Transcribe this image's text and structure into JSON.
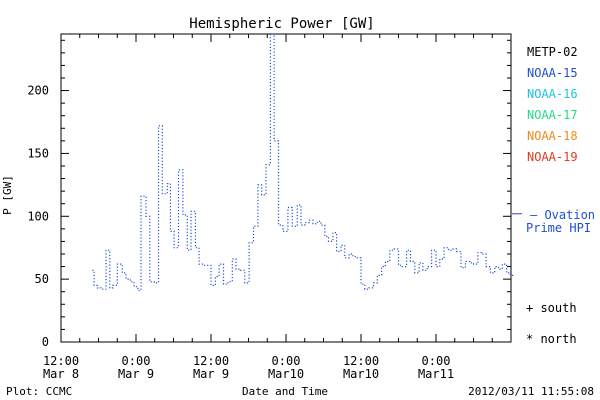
{
  "chart_data": {
    "type": "line",
    "title": "Hemispheric Power [GW]",
    "xlabel": "Date and Time",
    "ylabel": "P [GW]",
    "ylim": [
      0,
      245
    ],
    "xlim_hours": [
      0,
      72
    ],
    "y_ticks": [
      0,
      50,
      100,
      150,
      200
    ],
    "x_ticks": [
      {
        "h": 0,
        "line1": "12:00",
        "line2": "Mar 8"
      },
      {
        "h": 12,
        "line1": "0:00",
        "line2": "Mar 9"
      },
      {
        "h": 24,
        "line1": "12:00",
        "line2": "Mar 9"
      },
      {
        "h": 36,
        "line1": "0:00",
        "line2": "Mar10"
      },
      {
        "h": 48,
        "line1": "12:00",
        "line2": "Mar10"
      },
      {
        "h": 60,
        "line1": "0:00",
        "line2": "Mar11"
      }
    ],
    "x_time_origin": "2012/03/08 12:00",
    "grid": false,
    "legend": [
      {
        "name": "METP-02",
        "color": "#000000"
      },
      {
        "name": "NOAA-15",
        "color": "#1f4fd0"
      },
      {
        "name": "NOAA-16",
        "color": "#22c4dc"
      },
      {
        "name": "NOAA-17",
        "color": "#22dc88"
      },
      {
        "name": "NOAA-18",
        "color": "#f08a1e"
      },
      {
        "name": "NOAA-19",
        "color": "#e03a1e"
      }
    ],
    "legend_position": "right",
    "ovation": {
      "label_line1": "– Ovation",
      "label_line2": "Prime HPI",
      "value": 102,
      "color": "#1f4fd0"
    },
    "symbol_legend": [
      "+ south",
      "* north"
    ],
    "series": [
      {
        "name": "Ovation Prime HPI",
        "color": "#1f4fd0",
        "style": "dotted-step",
        "t": [
          5.0,
          5.3,
          5.8,
          6.4,
          7.2,
          7.8,
          8.3,
          9.0,
          9.8,
          10.4,
          11.1,
          11.7,
          12.3,
          12.8,
          13.6,
          14.2,
          14.9,
          15.6,
          16.2,
          17.0,
          17.5,
          18.1,
          18.8,
          19.5,
          20.2,
          20.8,
          21.5,
          22.1,
          22.8,
          23.4,
          24.0,
          24.7,
          25.3,
          26.0,
          26.7,
          27.4,
          28.0,
          28.7,
          29.4,
          30.1,
          30.8,
          31.5,
          32.1,
          32.8,
          33.5,
          34.1,
          34.8,
          35.5,
          36.3,
          37.0,
          37.8,
          38.4,
          39.0,
          39.7,
          40.3,
          41.0,
          41.6,
          42.2,
          42.8,
          43.5,
          44.1,
          44.8,
          45.4,
          46.1,
          46.7,
          47.4,
          48.0,
          48.6,
          49.3,
          50.0,
          50.6,
          51.3,
          51.9,
          52.6,
          53.3,
          54.0,
          54.6,
          55.3,
          55.9,
          56.6,
          57.3,
          57.9,
          58.6,
          59.3,
          60.0,
          60.6,
          61.3,
          62.0,
          62.7,
          63.3,
          64.0,
          64.7,
          65.4,
          66.0,
          66.7,
          67.3,
          68.0,
          68.7,
          69.4,
          70.0,
          70.6,
          71.3,
          71.9
        ],
        "values": [
          57,
          45,
          43,
          42,
          73,
          43,
          45,
          62,
          55,
          50,
          48,
          44,
          41,
          116,
          100,
          48,
          47,
          172,
          118,
          126,
          88,
          75,
          137,
          101,
          73,
          104,
          75,
          62,
          61,
          61,
          45,
          52,
          62,
          46,
          48,
          66,
          58,
          57,
          47,
          79,
          92,
          125,
          117,
          141,
          245,
          160,
          93,
          88,
          107,
          92,
          109,
          93,
          95,
          97,
          94,
          96,
          93,
          84,
          80,
          87,
          72,
          77,
          67,
          70,
          68,
          67,
          46,
          42,
          43,
          47,
          53,
          60,
          64,
          73,
          74,
          61,
          60,
          73,
          64,
          55,
          63,
          57,
          60,
          73,
          60,
          66,
          75,
          73,
          74,
          72,
          59,
          64,
          63,
          62,
          71,
          70,
          60,
          55,
          60,
          58,
          62,
          55,
          53
        ]
      }
    ]
  },
  "footer": {
    "left": "Plot: CCMC",
    "right": "2012/03/11 11:55:08"
  }
}
